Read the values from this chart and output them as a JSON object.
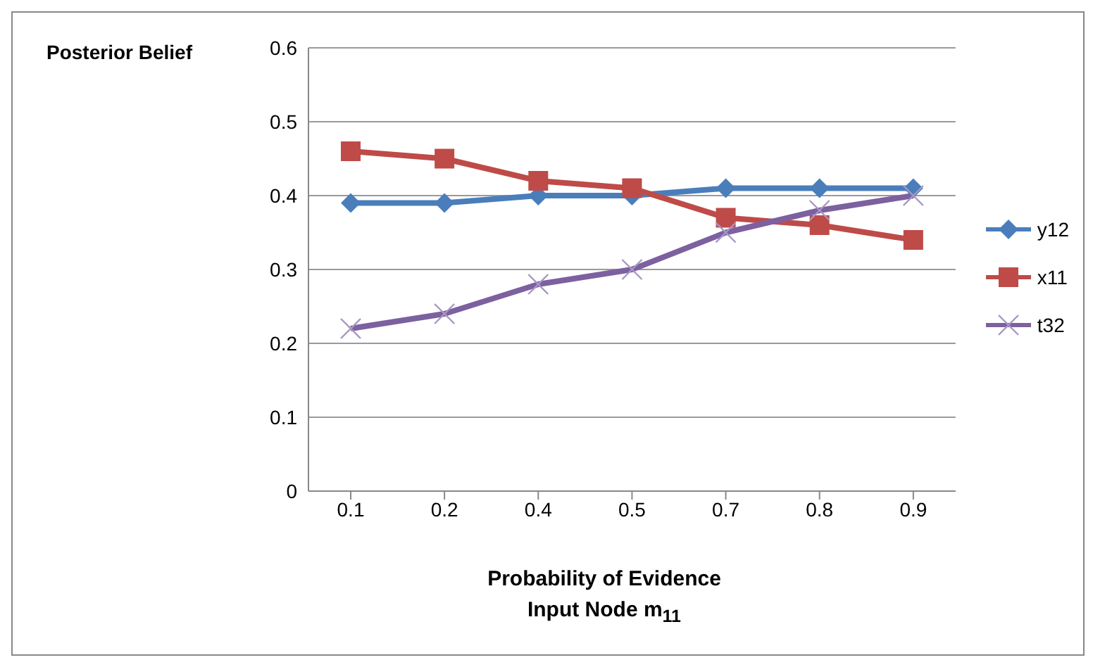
{
  "chart_data": {
    "type": "line",
    "ylabel": "Posterior Belief",
    "xlabel": "Probability of Evidence\nInput Node m$_{11}$",
    "categories": [
      "0.1",
      "0.2",
      "0.4",
      "0.5",
      "0.7",
      "0.8",
      "0.9"
    ],
    "series": [
      {
        "name": "y12",
        "color": "#4a7ebb",
        "marker": "diamond",
        "values": [
          0.39,
          0.39,
          0.4,
          0.4,
          0.41,
          0.41,
          0.41
        ]
      },
      {
        "name": "x11",
        "color": "#be4b48",
        "marker": "square",
        "values": [
          0.46,
          0.45,
          0.42,
          0.41,
          0.37,
          0.36,
          0.34
        ]
      },
      {
        "name": "t32",
        "color": "#7d60a0",
        "marker": "cross",
        "values": [
          0.22,
          0.24,
          0.28,
          0.3,
          0.35,
          0.38,
          0.4
        ]
      }
    ],
    "ylim": [
      0,
      0.6
    ],
    "yticks": [
      0,
      0.1,
      0.2,
      0.3,
      0.4,
      0.5,
      0.6
    ],
    "grid": "y",
    "legend": "right"
  }
}
